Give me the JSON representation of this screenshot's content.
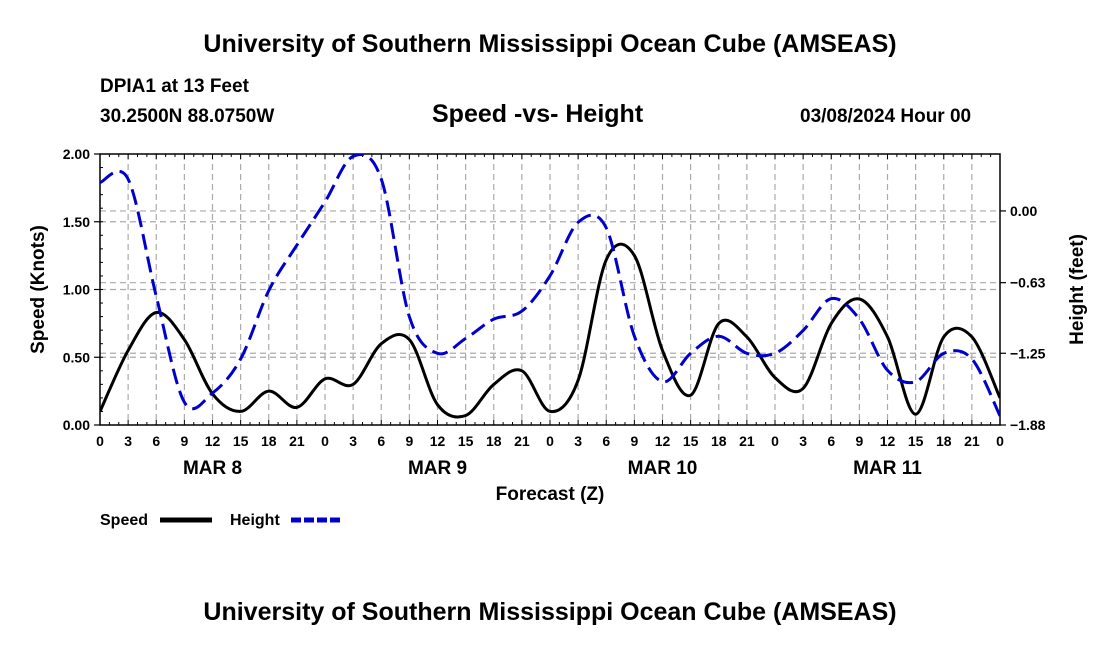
{
  "header": {
    "title": "University of Southern Mississippi Ocean Cube (AMSEAS)",
    "station": "DPIA1 at 13 Feet",
    "coords": "30.2500N  88.0750W",
    "chart_title": "Speed -vs- Height",
    "datetime": "03/08/2024 Hour 00"
  },
  "footer": {
    "title": "University of Southern Mississippi Ocean Cube (AMSEAS)"
  },
  "colors": {
    "speed": "#000000",
    "height": "#0000cc",
    "grid": "#aaaaaa"
  },
  "chart_data": {
    "type": "line",
    "title": "Speed -vs- Height",
    "xlabel": "Forecast (Z)",
    "ylabel_left": "Speed (Knots)",
    "ylabel_right": "Height (feet)",
    "xlim": [
      0,
      96
    ],
    "ylim_left": [
      0,
      2
    ],
    "ylim_right": [
      -1.88,
      0.5
    ],
    "x_tick_labels": [
      "0",
      "3",
      "6",
      "9",
      "12",
      "15",
      "18",
      "21",
      "0",
      "3",
      "6",
      "9",
      "12",
      "15",
      "18",
      "21",
      "0",
      "3",
      "6",
      "9",
      "12",
      "15",
      "18",
      "21",
      "0",
      "3",
      "6",
      "9",
      "12",
      "15",
      "18",
      "21",
      "0"
    ],
    "y_left_ticks": [
      {
        "value": 0,
        "label": "0.00"
      },
      {
        "value": 0.5,
        "label": "0.50"
      },
      {
        "value": 1,
        "label": "1.00"
      },
      {
        "value": 1.5,
        "label": "1.50"
      },
      {
        "value": 2,
        "label": "2.00"
      }
    ],
    "y_right_ticks": [
      {
        "value": 0,
        "label": "0.00"
      },
      {
        "value": -0.63,
        "label": "−0.63"
      },
      {
        "value": -1.25,
        "label": "−1.25"
      },
      {
        "value": -1.88,
        "label": "−1.88"
      }
    ],
    "day_labels": [
      {
        "hour": 12,
        "label": "MAR 8"
      },
      {
        "hour": 36,
        "label": "MAR 9"
      },
      {
        "hour": 60,
        "label": "MAR 10"
      },
      {
        "hour": 84,
        "label": "MAR 11"
      }
    ],
    "legend": [
      {
        "name": "Speed",
        "style": "solid"
      },
      {
        "name": "Height",
        "style": "dashed"
      }
    ],
    "series": [
      {
        "name": "Speed",
        "axis": "left",
        "x": [
          0,
          3,
          6,
          9,
          12,
          15,
          18,
          21,
          24,
          27,
          30,
          33,
          36,
          39,
          42,
          45,
          48,
          51,
          54,
          57,
          60,
          63,
          66,
          69,
          72,
          75,
          78,
          81,
          84,
          87,
          90,
          93,
          96
        ],
        "values": [
          0.1,
          0.55,
          0.83,
          0.63,
          0.23,
          0.1,
          0.25,
          0.13,
          0.34,
          0.3,
          0.6,
          0.63,
          0.15,
          0.07,
          0.3,
          0.4,
          0.1,
          0.33,
          1.22,
          1.25,
          0.55,
          0.22,
          0.75,
          0.65,
          0.35,
          0.27,
          0.75,
          0.93,
          0.65,
          0.08,
          0.65,
          0.65,
          0.2
        ]
      },
      {
        "name": "Height",
        "axis": "right",
        "x": [
          0,
          3,
          6,
          9,
          12,
          15,
          18,
          21,
          24,
          27,
          30,
          33,
          36,
          39,
          42,
          45,
          48,
          51,
          54,
          57,
          60,
          63,
          66,
          69,
          72,
          75,
          78,
          81,
          84,
          87,
          90,
          93,
          96
        ],
        "values": [
          0.25,
          0.28,
          -0.75,
          -1.68,
          -1.6,
          -1.3,
          -0.7,
          -0.3,
          0.08,
          0.48,
          0.28,
          -0.93,
          -1.25,
          -1.12,
          -0.95,
          -0.88,
          -0.57,
          -0.1,
          -0.15,
          -1.1,
          -1.5,
          -1.25,
          -1.1,
          -1.25,
          -1.25,
          -1.05,
          -0.77,
          -0.95,
          -1.4,
          -1.5,
          -1.25,
          -1.3,
          -1.8
        ]
      }
    ]
  }
}
